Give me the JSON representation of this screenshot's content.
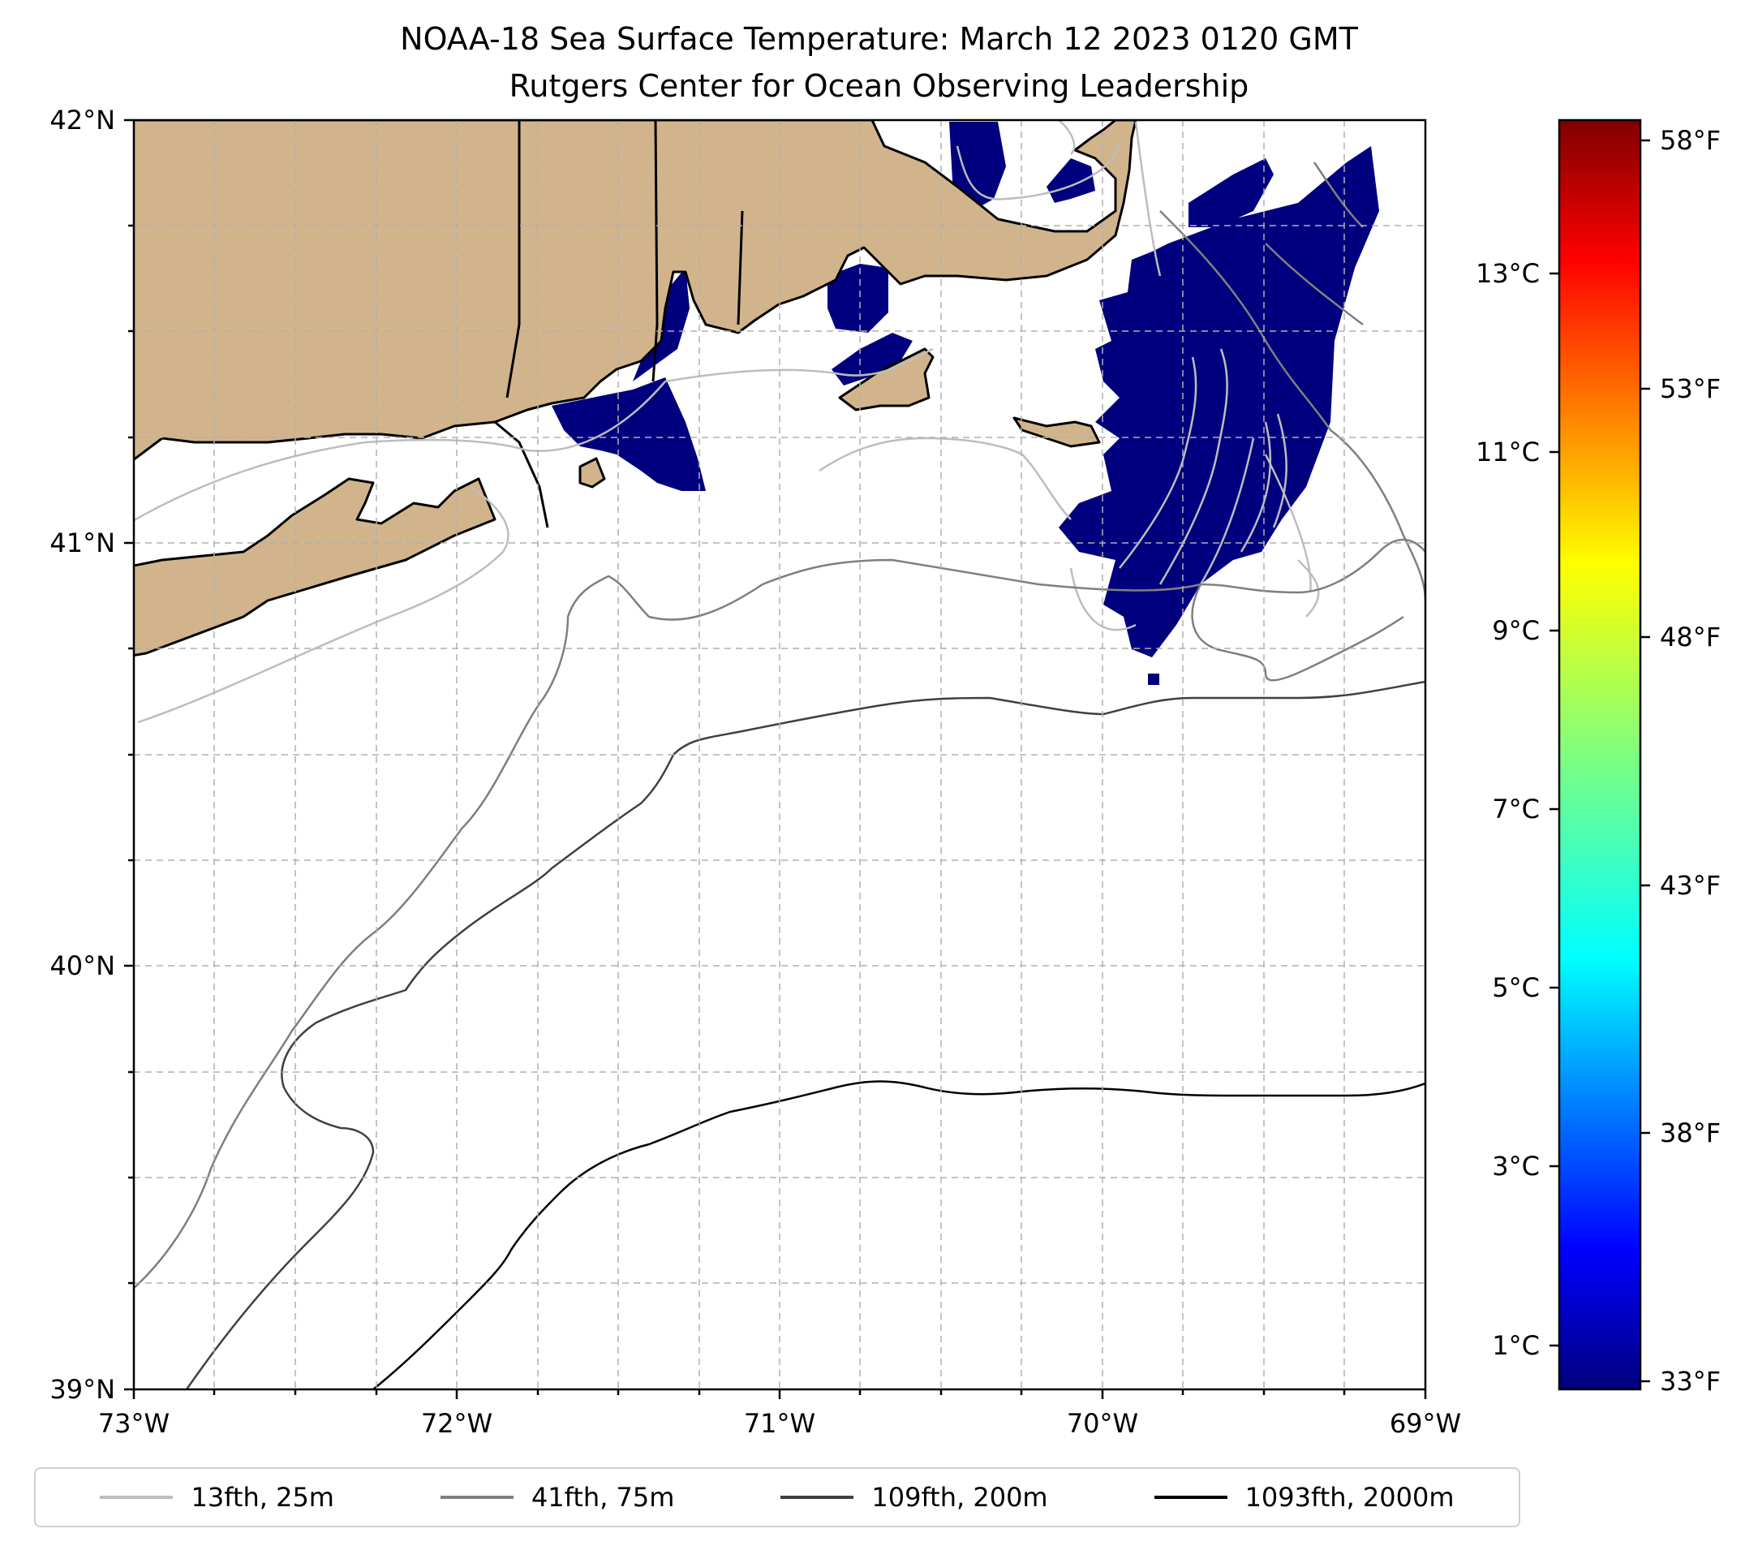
{
  "title": {
    "line1": "NOAA-18 Sea Surface Temperature: March 12 2023 0120 GMT",
    "line2": "Rutgers Center for Ocean Observing Leadership"
  },
  "map": {
    "lon_range": [
      -73,
      -69
    ],
    "lat_range": [
      39,
      42
    ],
    "projection": "plate carree",
    "grid": true,
    "x_tick_labels": [
      "73°W",
      "72°W",
      "71°W",
      "70°W",
      "69°W"
    ],
    "y_tick_labels": [
      "39°N",
      "40°N",
      "41°N",
      "42°N"
    ],
    "land_color": "#d2b48c",
    "coastline_color": "#000000",
    "sst_patch_color": "#00007f"
  },
  "colorbar": {
    "colormap": "jet",
    "celsius_labels": [
      "1°C",
      "3°C",
      "5°C",
      "7°C",
      "9°C",
      "11°C",
      "13°C"
    ],
    "fahrenheit_labels": [
      "33°F",
      "38°F",
      "43°F",
      "48°F",
      "53°F",
      "58°F"
    ],
    "range_f": [
      33,
      59
    ]
  },
  "legend": {
    "placement": "bottom",
    "items": [
      {
        "label": "13fth, 25m",
        "color": "#bdbdbd"
      },
      {
        "label": "41fth, 75m",
        "color": "#7f7f7f"
      },
      {
        "label": "109fth, 200m",
        "color": "#404040"
      },
      {
        "label": "1093fth, 2000m",
        "color": "#000000"
      }
    ]
  }
}
